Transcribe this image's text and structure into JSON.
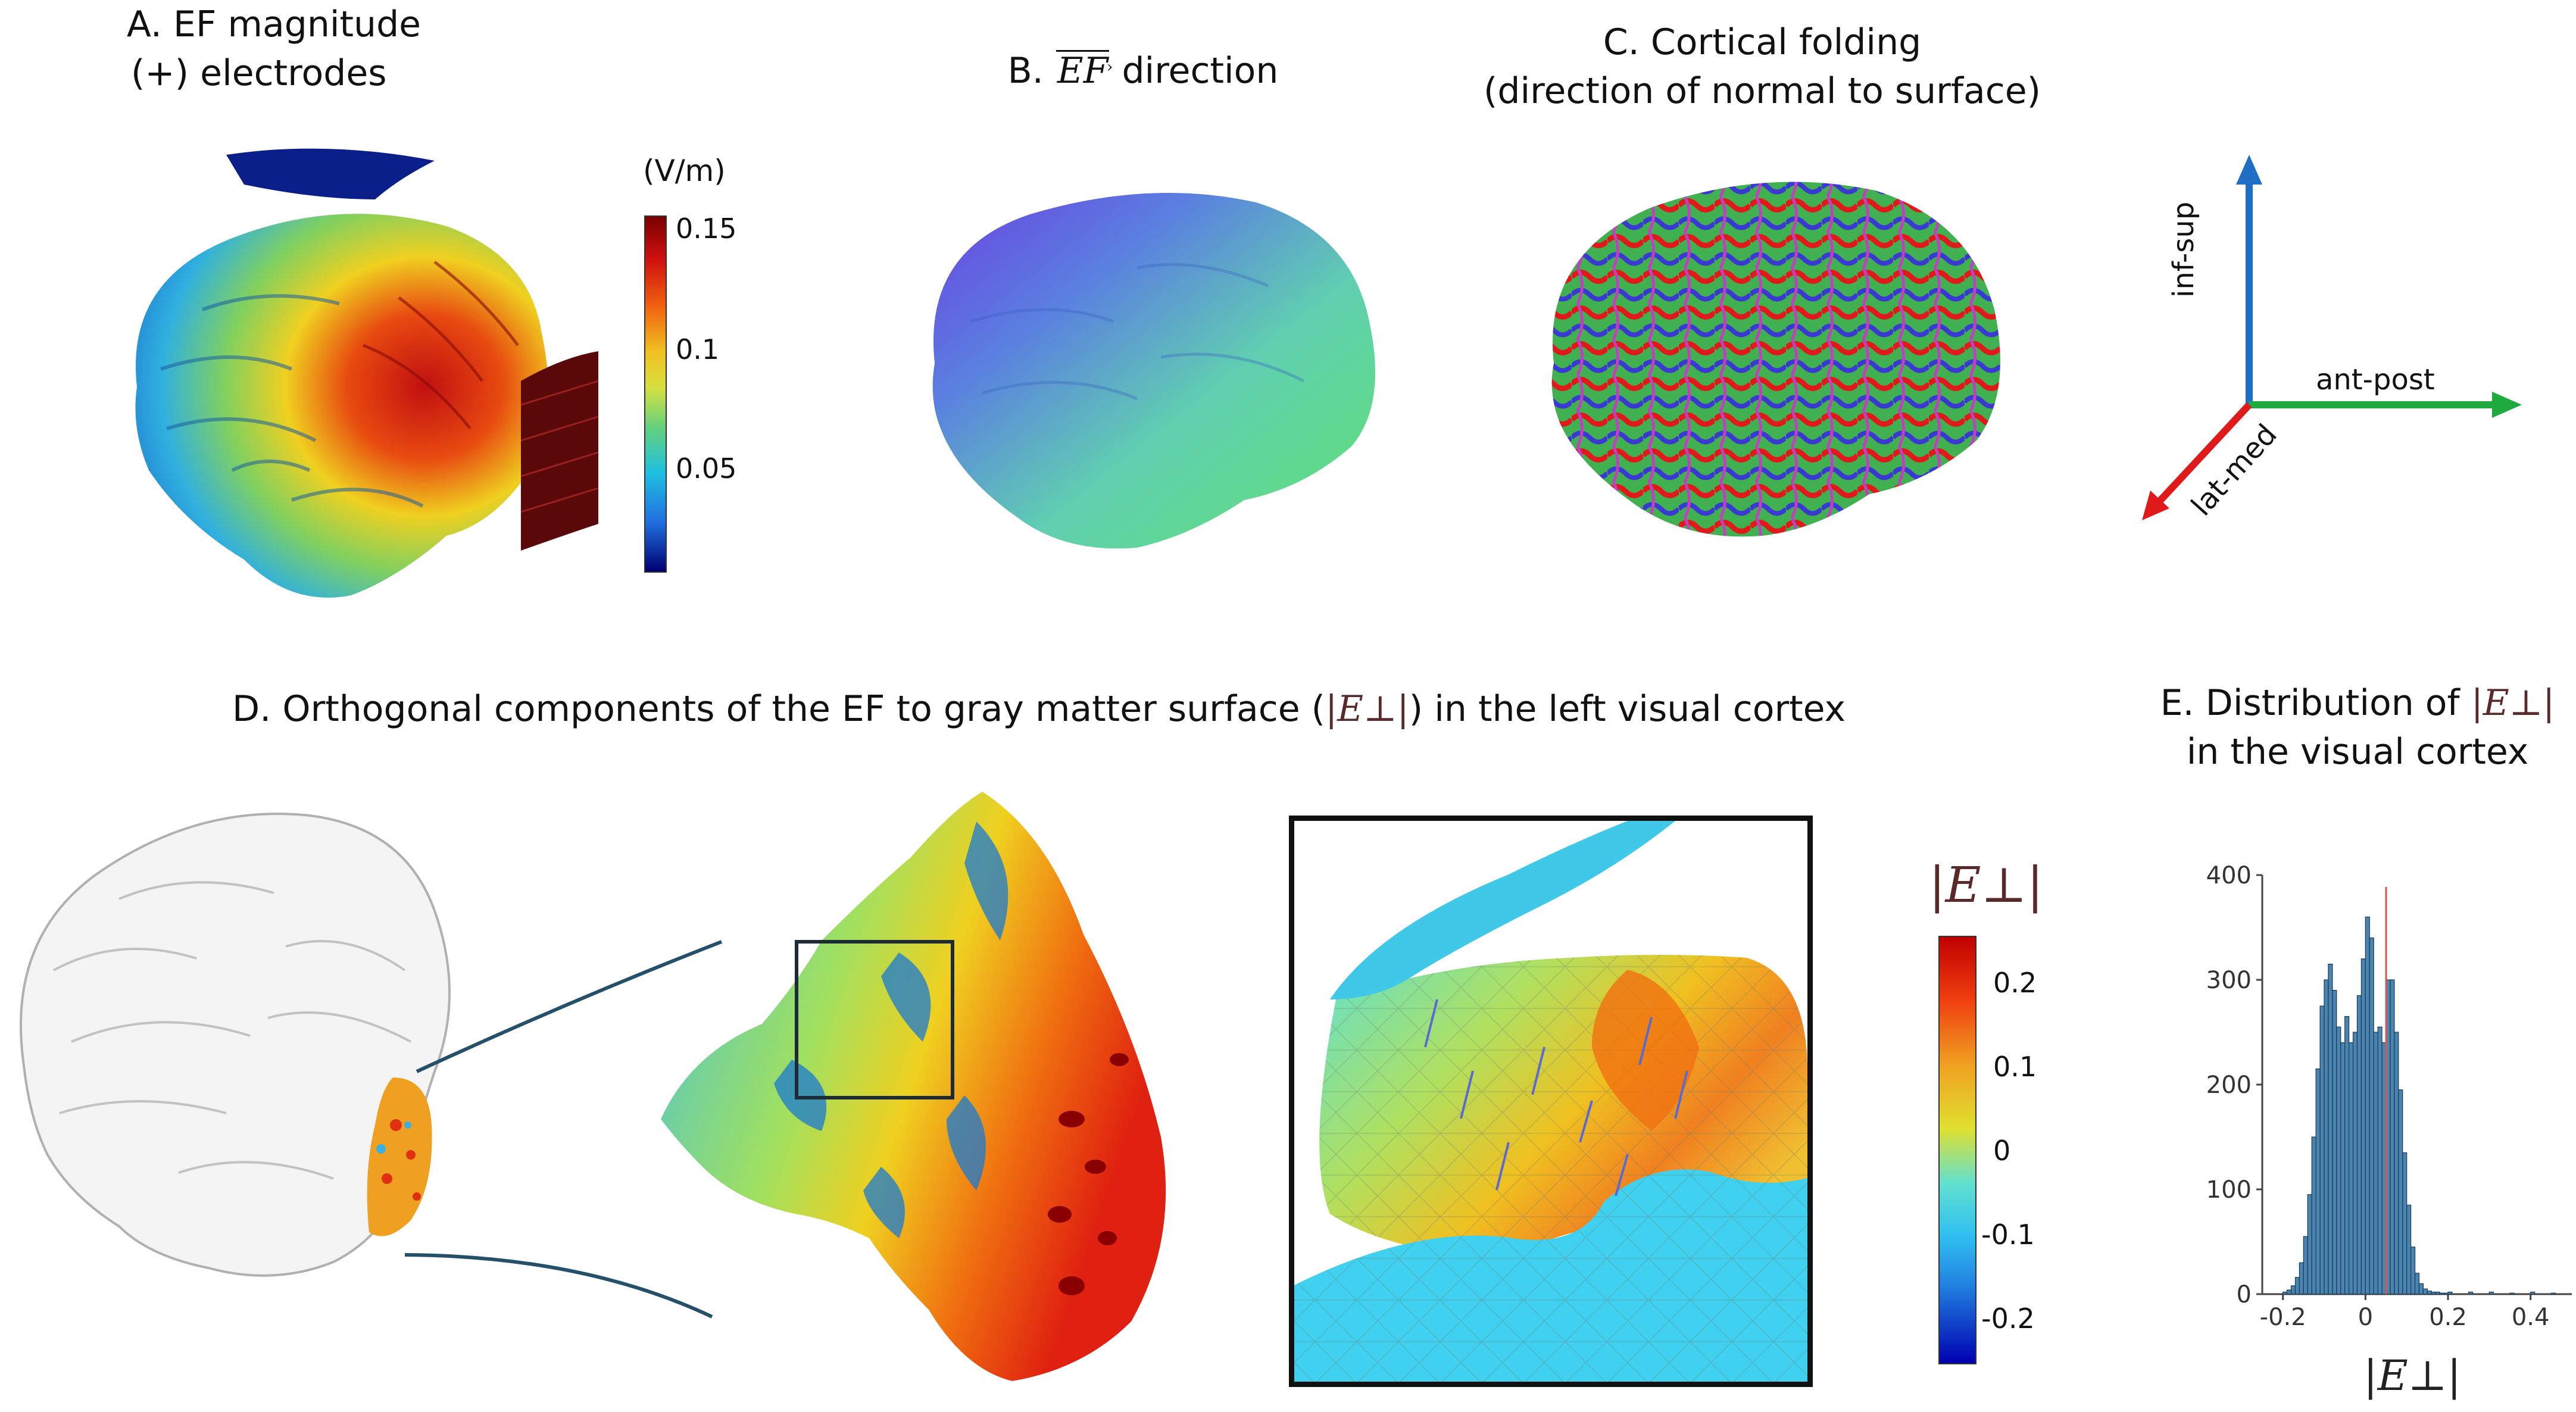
{
  "panelA": {
    "title_line1": "A. EF magnitude",
    "title_line2": "(+) electrodes",
    "colorbar_unit": "(V/m)",
    "colorbar_ticks": [
      "0.15",
      "0.1",
      "0.05"
    ]
  },
  "panelB": {
    "title_prefix": "B.",
    "title_vec": "EF",
    "title_suffix": "direction"
  },
  "panelC": {
    "title_line1": "C. Cortical folding",
    "title_line2": "(direction of normal to surface)"
  },
  "axes_legend": {
    "vertical": "inf-sup",
    "horizontal": "ant-post",
    "diagonal": "lat-med",
    "colors": {
      "vertical": "#1f6fc4",
      "horizontal": "#1faa3f",
      "diagonal": "#e01a1a"
    }
  },
  "panelD": {
    "title_start": "D. Orthogonal components of the EF to gray matter surface (",
    "title_symbol": "|E⊥|",
    "title_end": ") in the left visual cortex",
    "colorbar_label": "|E⊥|",
    "colorbar_ticks": [
      "0.2",
      "0.1",
      "0",
      "-0.1",
      "-0.2"
    ]
  },
  "panelE": {
    "title_line1_prefix": "E. Distribution of",
    "title_symbol": "|E⊥|",
    "title_line2": "in the visual cortex",
    "xlabel": "|E⊥|",
    "chart_data": {
      "type": "bar",
      "title": "E. Distribution of |E⊥| in the visual cortex",
      "xlabel": "|E⊥|",
      "ylabel": "",
      "xlim": [
        -0.25,
        0.5
      ],
      "ylim": [
        0,
        400
      ],
      "xticks": [
        "-0.2",
        "0",
        "0.2",
        "0.4"
      ],
      "yticks": [
        "0",
        "100",
        "200",
        "300",
        "400"
      ],
      "bar_color": "#4a84b0",
      "reference_line_x": 0.05,
      "reference_line_color": "#d9534f",
      "bin_width": 0.01,
      "bin_starts": [
        -0.2,
        -0.19,
        -0.18,
        -0.17,
        -0.16,
        -0.15,
        -0.14,
        -0.13,
        -0.12,
        -0.11,
        -0.1,
        -0.09,
        -0.08,
        -0.07,
        -0.06,
        -0.05,
        -0.04,
        -0.03,
        -0.02,
        -0.01,
        0.0,
        0.01,
        0.02,
        0.03,
        0.04,
        0.05,
        0.06,
        0.07,
        0.08,
        0.09,
        0.1,
        0.11,
        0.12,
        0.13,
        0.14,
        0.15,
        0.16,
        0.17,
        0.18,
        0.19,
        0.2,
        0.25,
        0.3,
        0.35,
        0.4,
        0.45
      ],
      "values": [
        2,
        4,
        8,
        16,
        30,
        55,
        95,
        150,
        215,
        275,
        300,
        315,
        290,
        255,
        240,
        265,
        240,
        250,
        285,
        320,
        360,
        340,
        250,
        255,
        240,
        300,
        300,
        250,
        195,
        135,
        85,
        45,
        20,
        10,
        5,
        3,
        2,
        2,
        1,
        1,
        2,
        2,
        2,
        1,
        2,
        1
      ]
    }
  }
}
